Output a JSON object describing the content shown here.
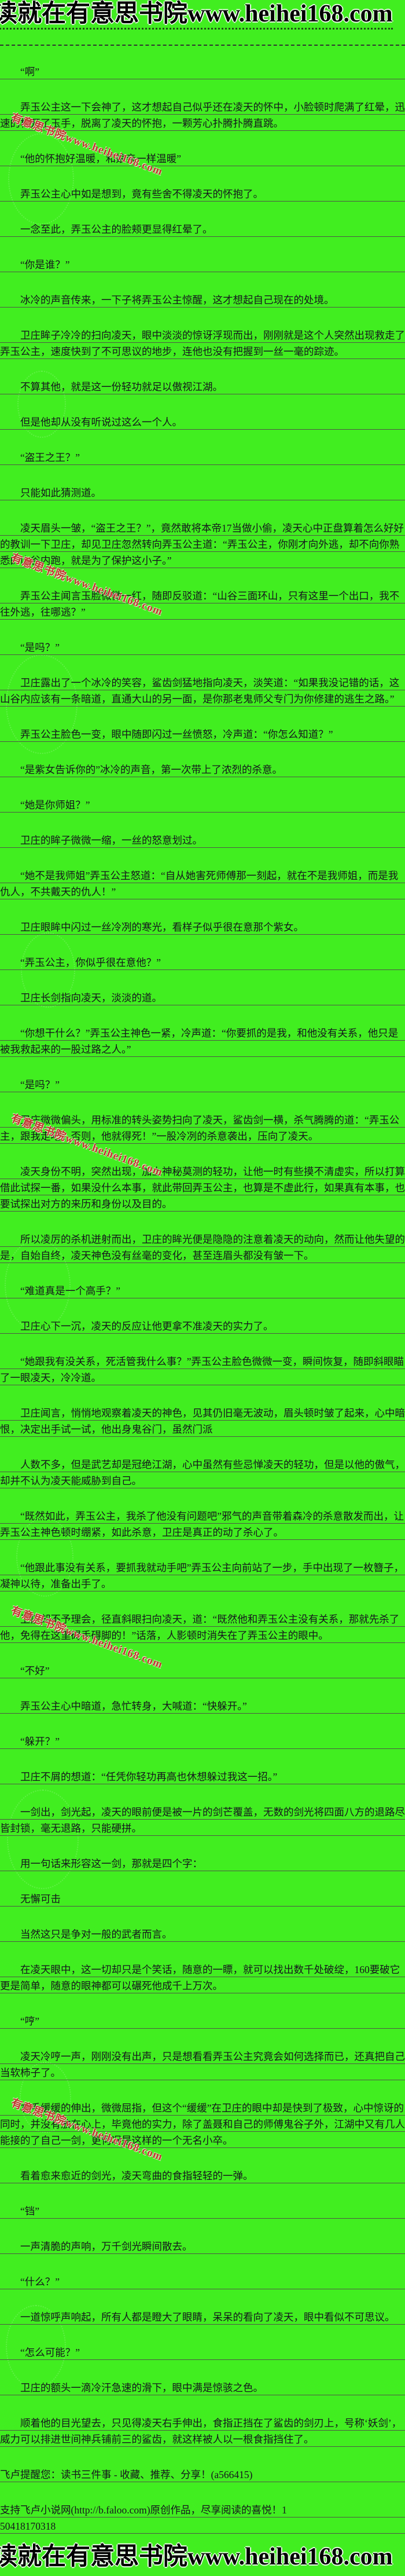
{
  "page": {
    "bg_color": "#41ee20",
    "text_color": "#15151d",
    "underline_color": "#4f5548",
    "banner_top": "读就在有意思书院www.heihei168.com",
    "banner_bottom": "读就在有意思书院www.heihei168.com",
    "watermark": {
      "text": "有意思书院www.heihei168.com",
      "color": "#c62f2f"
    }
  },
  "novel": {
    "paragraphs": [
      {
        "t": "“啊”",
        "i": true
      },
      {
        "t": "弄玉公主这一下会神了，这才想起自己似乎还在凌天的怀中，小脸顿时爬满了红晕，迅速的松开了玉手，脱离了凌天的怀抱，一颗芳心扑腾扑腾直跳。",
        "i": true
      },
      {
        "t": "“他的怀抱好温暖，和娘亲一样温暖”",
        "i": true
      },
      {
        "t": "弄玉公主心中如是想到，竟有些舍不得凌天的怀抱了。",
        "i": true
      },
      {
        "t": "一念至此，弄玉公主的脸颊更显得红晕了。",
        "i": true
      },
      {
        "t": "“你是谁？”",
        "i": true
      },
      {
        "t": "冰冷的声音传来，一下子将弄玉公主惊醒，这才想起自己现在的处境。",
        "i": true
      },
      {
        "t": "卫庄眸子冷冷的扫向凌天，眼中淡淡的惊讶浮现而出，刚刚就是这个人突然出现救走了弄玉公主，速度快到了不可思议的地步，连他也没有把握到一丝一毫的踪迹。",
        "i": true
      },
      {
        "t": "不算其他，就是这一份轻功就足以傲视江湖。",
        "i": true
      },
      {
        "t": "但是他却从没有听说过这么一个人。",
        "i": true
      },
      {
        "t": "“盗王之王？”",
        "i": true
      },
      {
        "t": "只能如此猜测道。",
        "i": true
      },
      {
        "t": "凌天眉头一皱，“盗王之王？”，竟然敢将本帝17当做小偷，凌天心中正盘算着怎么好好的教训一下卫庄，却见卫庄忽然转向弄玉公主道：“弄玉公主，你刚才向外逃，却不向你熟悉的山谷内跑，就是为了保护这小子。”",
        "i": true
      },
      {
        "t": "弄玉公主闻言玉脸微微一红，随即反驳道：“山谷三面环山，只有这里一个出口，我不往外逃，往哪逃？”",
        "i": true
      },
      {
        "t": "“是吗？”",
        "i": true
      },
      {
        "t": "卫庄露出了一个冰冷的笑容，鲨齿剑猛地指向凌天，淡笑道：“如果我没记错的话，这山谷内应该有一条暗道，直通大山的另一面，是你那老鬼师父专门为你修建的逃生之路。”",
        "i": true
      },
      {
        "t": "弄玉公主脸色一变，眼中随即闪过一丝愤怒，冷声道：“你怎么知道？”",
        "i": true
      },
      {
        "t": "“是紫女告诉你的”冰冷的声音，第一次带上了浓烈的杀意。",
        "i": true
      },
      {
        "t": "“她是你师姐？”",
        "i": true
      },
      {
        "t": "卫庄的眸子微微一缩，一丝的怒意划过。",
        "i": true
      },
      {
        "t": "“她不是我师姐”弄玉公主怒道：“自从她害死师傅那一刻起，就在不是我师姐，而是我仇人，不共戴天的仇人！”",
        "i": true
      },
      {
        "t": "卫庄眼眸中闪过一丝冷冽的寒光，看样子似乎很在意那个紫女。",
        "i": true
      },
      {
        "t": "“弄玉公主，你似乎很在意他？”",
        "i": true
      },
      {
        "t": "卫庄长剑指向凌天，淡淡的道。",
        "i": true
      },
      {
        "t": "“你想干什么？”弄玉公主神色一紧，冷声道：“你要抓的是我，和他没有关系，他只是被我救起来的一股过路之人。”",
        "i": true
      },
      {
        "t": "“是吗？”",
        "i": true
      },
      {
        "t": "卫庄微微偏头，用标准的转头姿势扫向了凌天，鲨齿剑一横，杀气腾腾的道：“弄玉公主，跟我走吧，否则，他就得死！”一股冷冽的杀意袭出，压向了凌天。",
        "i": true
      },
      {
        "t": "凌天身份不明，突然出现，加上神秘莫测的轻功，让他一时有些摸不清虚实，所以打算借此试探一番，如果没什么本事，就此带回弄玉公主，也算是不虚此行，如果真有本事，也要试探出对方的来历和身份以及目的。",
        "i": true
      },
      {
        "t": "所以凌厉的杀机迸射而出，卫庄的眸光便是隐隐的注意着凌天的动向，然而让他失望的是，自始自终，凌天神色没有丝毫的变化，甚至连眉头都没有皱一下。",
        "i": true
      },
      {
        "t": "“难道真是一个高手？”",
        "i": true
      },
      {
        "t": "卫庄心下一沉，凌天的反应让他更拿不准凌天的实力了。",
        "i": true
      },
      {
        "t": "“她跟我有没关系，死活管我什么事？”弄玉公主脸色微微一变，瞬间恢复，随即斜眼瞄了一眼凌天，冷冷道。",
        "i": true
      },
      {
        "t": "卫庄闻言，悄悄地观察着凌天的神色，见其仍旧毫无波动，眉头顿时皱了起来，心中暗恨，决定出手试一试，他出身鬼谷门，虽然门派",
        "i": true
      },
      {
        "t": "人数不多，但是武艺却是冠绝江湖，心中虽然有些忌惮凌天的轻功，但是以他的傲气，却并不认为凌天能威胁到自己。",
        "i": true
      },
      {
        "t": "“既然如此，弄玉公主，我杀了他没有问题吧”邪气的声音带着森冷的杀意散发而出，让弄玉公主神色顿时绷紧，如此杀意，卫庄是真正的动了杀心了。",
        "i": true
      },
      {
        "t": "“他跟此事没有关系，要抓我就动手吧”弄玉公主向前站了一步，手中出现了一枚簪子，凝神以待，准备出手了。",
        "i": true
      },
      {
        "t": "卫庄却不予理会，径直斜眼扫向凌天，道：“既然他和弄玉公主没有关系，那就先杀了他，免得在这里碍手碍脚的！”话落，人影顿时消失在了弄玉公主的眼中。",
        "i": true
      },
      {
        "t": "“不好”",
        "i": true
      },
      {
        "t": "弄玉公主心中暗道，急忙转身，大喊道：“快躲开。”",
        "i": true
      },
      {
        "t": "“躲开？”",
        "i": true
      },
      {
        "t": "卫庄不屑的想道：“任凭你轻功再高也休想躲过我这一招。”",
        "i": true
      },
      {
        "t": "一剑出，剑光起，凌天的眼前便是被一片的剑芒覆盖，无数的剑光将四面八方的退路尽皆封锁，毫无退路，只能硬拼。",
        "i": true
      },
      {
        "t": "用一句话来形容这一剑，那就是四个字：",
        "i": true
      },
      {
        "t": "无懈可击",
        "i": true
      },
      {
        "t": "当然这只是争对一般的武者而言。",
        "i": true
      },
      {
        "t": "在凌天眼中，这一切却只是个笑话，随意的一瞟，就可以找出数千处破绽，160要破它更是简单，随意的眼神都可以碾死他成千上万次。",
        "i": true
      },
      {
        "t": "“哼”",
        "i": true
      },
      {
        "t": "凌天冷哼一声，刚刚没有出声，只是想看看弄玉公主究竟会如何选择而已，还真把自己当软柿子了。",
        "i": true
      },
      {
        "t": "右手缓缓的伸出，微微屈指，但这个“缓缓”在卫庄的眼中却是快到了极致，心中惊讶的同时，并没有放在心上，毕竟他的实力，除了盖聂和自己的师傅鬼谷子外，江湖中又有几人能接的了自己一剑，更何况是这样的一个无名小卒。",
        "i": true
      },
      {
        "t": "看着愈来愈近的剑光，凌天弯曲的食指轻轻的一弹。",
        "i": true
      },
      {
        "t": "“铛”",
        "i": true
      },
      {
        "t": "一声清脆的声响，万千剑光瞬间散去。",
        "i": true
      },
      {
        "t": "“什么？”",
        "i": true
      },
      {
        "t": "一道惊呼声响起，所有人都是瞪大了眼睛，呆呆的看向了凌天，眼中看似不可思议。",
        "i": true
      },
      {
        "t": "“怎么可能？”",
        "i": true
      },
      {
        "t": "卫庄的额头一滴冷汗急速的滑下，眼中满是惊骇之色。",
        "i": true
      },
      {
        "t": "顺着他的目光望去，只见得凌天右手伸出，食指正挡在了鲨齿的剑刃上，号称‘妖剑’，威力可以排进世间神兵铺前三的鲨齿，就这样被人以一根食指挡住了。",
        "i": true
      },
      {
        "t": "飞卢提醒您：读书三件事 - 收藏、推荐、分享！(a566415)",
        "i": false
      },
      {
        "t": "支持飞卢小说网(http://b.faloo.com)原创作品，尽享阅读的喜悦！1\n50418170318",
        "i": false
      }
    ]
  }
}
